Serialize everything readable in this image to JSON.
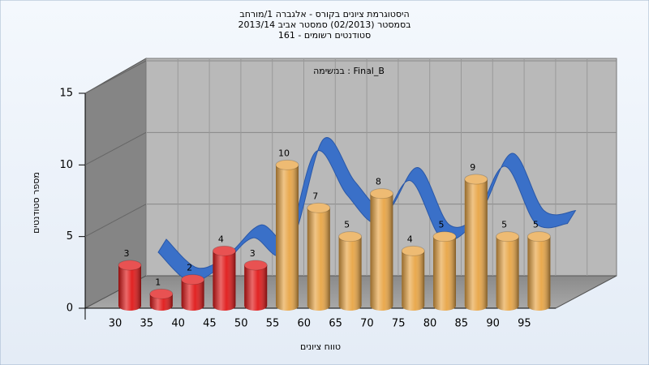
{
  "chart_data": {
    "type": "bar",
    "title": [
      "היסטוגרמת ציונים בקורס - אלגברה 1/מורחב",
      "בסמסטר  (02/2013)  סמסטר אביב 2013/14",
      "סטודנטים רשומים - 161"
    ],
    "annotation": "Final_B : במשימה",
    "x_label": "טווח ציונים",
    "y_label": "מספר סטודנטים",
    "categories": [
      "30",
      "35",
      "40",
      "45",
      "50",
      "55",
      "60",
      "65",
      "70",
      "75",
      "80",
      "85",
      "90",
      "95"
    ],
    "values": [
      3,
      1,
      2,
      4,
      3,
      10,
      7,
      5,
      8,
      4,
      5,
      9,
      5,
      5
    ],
    "bar_colors": [
      "#e01818",
      "#e01818",
      "#e01818",
      "#e01818",
      "#e01818",
      "#e8a545",
      "#e8a545",
      "#e8a545",
      "#e8a545",
      "#e8a545",
      "#e8a545",
      "#e8a545",
      "#e8a545",
      "#e8a545"
    ],
    "ribbon_color": "#3a70c8",
    "ylim": [
      0,
      15
    ],
    "yticks": [
      0,
      5,
      10,
      15
    ],
    "grid": true
  }
}
